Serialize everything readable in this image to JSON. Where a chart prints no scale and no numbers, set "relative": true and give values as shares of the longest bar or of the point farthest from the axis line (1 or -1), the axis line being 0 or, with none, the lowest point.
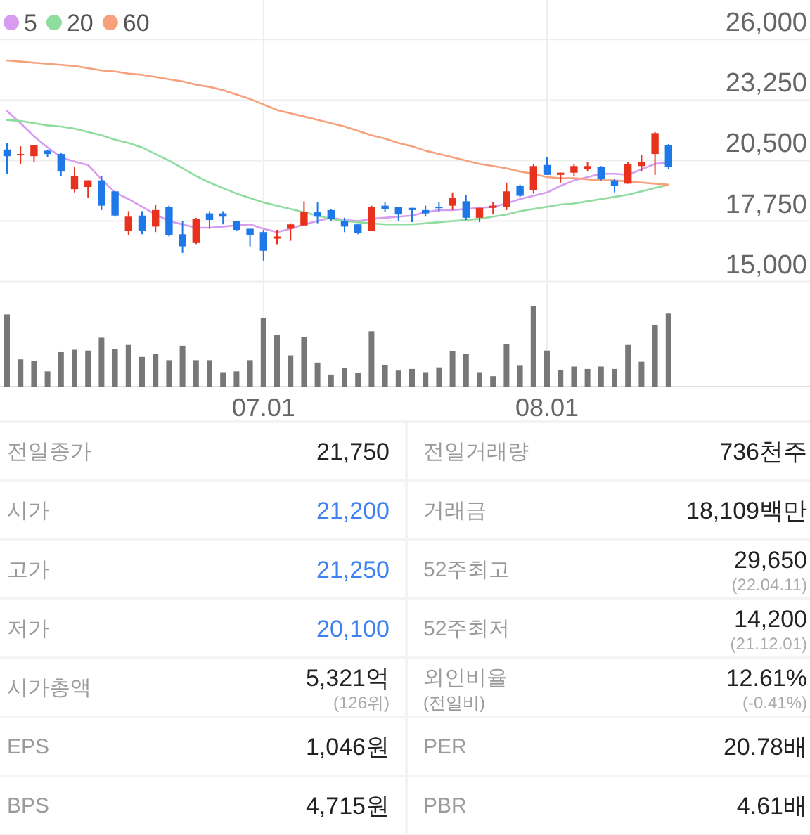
{
  "chart_data": [
    {
      "type": "candlestick",
      "categories": [
        null,
        null,
        null,
        null,
        null,
        null,
        null,
        null,
        null,
        null,
        null,
        null,
        null,
        null,
        null,
        null,
        null,
        null,
        null,
        "07.01",
        null,
        null,
        null,
        null,
        null,
        null,
        null,
        null,
        null,
        null,
        null,
        null,
        null,
        null,
        null,
        null,
        null,
        null,
        null,
        null,
        "08.01",
        null,
        null,
        null,
        null,
        null,
        null,
        null,
        null,
        null
      ],
      "ohlc": [
        [
          21000,
          21300,
          19900,
          20700
        ],
        [
          20750,
          21150,
          20350,
          20800
        ],
        [
          20700,
          21200,
          20450,
          21200
        ],
        [
          20950,
          21000,
          20650,
          20800
        ],
        [
          20800,
          20850,
          19800,
          20000
        ],
        [
          19200,
          20200,
          19050,
          19800
        ],
        [
          19300,
          19600,
          18800,
          19600
        ],
        [
          19600,
          19800,
          18250,
          18450
        ],
        [
          19100,
          19100,
          17950,
          18000
        ],
        [
          17300,
          18200,
          17100,
          17950
        ],
        [
          18000,
          18200,
          17150,
          17300
        ],
        [
          17500,
          18500,
          17250,
          18250
        ],
        [
          18400,
          18450,
          17050,
          17100
        ],
        [
          17150,
          17750,
          16300,
          16600
        ],
        [
          16750,
          17900,
          16700,
          17850
        ],
        [
          18100,
          18200,
          17400,
          17800
        ],
        [
          18100,
          18200,
          17600,
          17950
        ],
        [
          17750,
          17750,
          17300,
          17350
        ],
        [
          17400,
          17400,
          16600,
          17100
        ],
        [
          17250,
          17350,
          15950,
          16400
        ],
        [
          16950,
          17350,
          16700,
          17050
        ],
        [
          17400,
          17650,
          16850,
          17600
        ],
        [
          17550,
          18650,
          17550,
          18150
        ],
        [
          18150,
          18600,
          17650,
          17950
        ],
        [
          18250,
          18300,
          17750,
          17850
        ],
        [
          17750,
          17900,
          17250,
          17500
        ],
        [
          17600,
          17600,
          17150,
          17200
        ],
        [
          17300,
          18450,
          17300,
          18400
        ],
        [
          18450,
          18600,
          18150,
          18300
        ],
        [
          18400,
          18400,
          17750,
          18050
        ],
        [
          18350,
          18350,
          17700,
          18250
        ],
        [
          18250,
          18450,
          17950,
          18100
        ],
        [
          18400,
          18600,
          18150,
          18350
        ],
        [
          18450,
          19050,
          18250,
          18800
        ],
        [
          18650,
          18950,
          17800,
          17900
        ],
        [
          17900,
          18350,
          17700,
          18350
        ],
        [
          18350,
          18600,
          18050,
          18450
        ],
        [
          18400,
          19500,
          18250,
          19100
        ],
        [
          19350,
          19400,
          18850,
          18900
        ],
        [
          19150,
          20350,
          19000,
          20250
        ],
        [
          20300,
          20650,
          19850,
          19850
        ],
        [
          19850,
          19950,
          19500,
          19950
        ],
        [
          19950,
          20350,
          19800,
          20250
        ],
        [
          20100,
          20450,
          20000,
          20250
        ],
        [
          20200,
          20250,
          19600,
          19650
        ],
        [
          19600,
          19650,
          19050,
          19350
        ],
        [
          19450,
          20450,
          19450,
          20350
        ],
        [
          20250,
          20750,
          20000,
          20450
        ],
        [
          20800,
          21800,
          19850,
          21750
        ],
        [
          21200,
          21250,
          20100,
          20200
        ]
      ],
      "colors": [
        "#1e78e8",
        "#e8321e",
        "#e8321e",
        "#1e78e8",
        "#1e78e8",
        "#e8321e",
        "#e8321e",
        "#1e78e8",
        "#1e78e8",
        "#e8321e",
        "#1e78e8",
        "#e8321e",
        "#1e78e8",
        "#1e78e8",
        "#e8321e",
        "#1e78e8",
        "#1e78e8",
        "#1e78e8",
        "#1e78e8",
        "#1e78e8",
        "#e8321e",
        "#e8321e",
        "#e8321e",
        "#1e78e8",
        "#1e78e8",
        "#1e78e8",
        "#1e78e8",
        "#e8321e",
        "#1e78e8",
        "#1e78e8",
        "#1e78e8",
        "#1e78e8",
        "#1e78e8",
        "#e8321e",
        "#1e78e8",
        "#e8321e",
        "#e8321e",
        "#e8321e",
        "#1e78e8",
        "#e8321e",
        "#1e78e8",
        "#e8321e",
        "#e8321e",
        "#e8321e",
        "#1e78e8",
        "#1e78e8",
        "#e8321e",
        "#e8321e",
        "#e8321e",
        "#1e78e8"
      ],
      "series": [
        {
          "name": "5",
          "type": "line",
          "color": "#d79cf0",
          "values": [
            22750,
            22200,
            21600,
            21100,
            20650,
            20450,
            20300,
            19650,
            19050,
            18750,
            18400,
            18050,
            17750,
            17600,
            17450,
            17450,
            17500,
            17550,
            17600,
            17400,
            17250,
            17400,
            17600,
            17750,
            17900,
            17800,
            17750,
            17850,
            17900,
            17950,
            18000,
            18150,
            18250,
            18250,
            18300,
            18350,
            18400,
            18550,
            18750,
            18900,
            19050,
            19350,
            19600,
            19750,
            19900,
            19900,
            19850,
            20100,
            20350,
            20400
          ]
        },
        {
          "name": "20",
          "type": "line",
          "color": "#8fdc9f",
          "values": [
            22350,
            22300,
            22200,
            22100,
            22050,
            21950,
            21800,
            21650,
            21450,
            21300,
            21100,
            20800,
            20500,
            20150,
            19800,
            19500,
            19250,
            19000,
            18800,
            18600,
            18450,
            18300,
            18150,
            18000,
            17850,
            17750,
            17700,
            17650,
            17600,
            17600,
            17600,
            17650,
            17700,
            17750,
            17800,
            17850,
            17950,
            18050,
            18200,
            18300,
            18400,
            18500,
            18550,
            18650,
            18750,
            18850,
            18950,
            19100,
            19250,
            19400
          ]
        },
        {
          "name": "60",
          "type": "line",
          "color": "#f6a07c",
          "values": [
            25050,
            25000,
            24950,
            24900,
            24850,
            24800,
            24700,
            24600,
            24550,
            24450,
            24400,
            24300,
            24200,
            24100,
            23950,
            23850,
            23700,
            23500,
            23300,
            23050,
            22800,
            22650,
            22500,
            22350,
            22200,
            22050,
            21850,
            21650,
            21500,
            21300,
            21150,
            20950,
            20800,
            20650,
            20500,
            20350,
            20250,
            20150,
            20000,
            19900,
            19750,
            19700,
            19700,
            19650,
            19600,
            19600,
            19550,
            19500,
            19450,
            19400
          ]
        }
      ],
      "ylim": [
        14700,
        27800
      ],
      "yticks": [
        {
          "value": 15000,
          "label": "15,000"
        },
        {
          "value": 17750,
          "label": "17,750"
        },
        {
          "value": 20500,
          "label": "20,500"
        },
        {
          "value": 23250,
          "label": "23,250"
        },
        {
          "value": 26000,
          "label": "26,000"
        }
      ],
      "grid": true,
      "legend": "top left",
      "tick_labels": "y"
    },
    {
      "type": "bar",
      "relative": true,
      "color": "#777777",
      "grid": "x",
      "tick_labels": "x",
      "categories": [
        null,
        null,
        null,
        null,
        null,
        null,
        null,
        null,
        null,
        null,
        null,
        null,
        null,
        null,
        null,
        null,
        null,
        null,
        null,
        "07.01",
        null,
        null,
        null,
        null,
        null,
        null,
        null,
        null,
        null,
        null,
        null,
        null,
        null,
        null,
        null,
        null,
        null,
        null,
        null,
        null,
        "08.01",
        null,
        null,
        null,
        null,
        null,
        null,
        null,
        null,
        null
      ],
      "values": [
        0.9,
        0.34,
        0.32,
        0.19,
        0.43,
        0.46,
        0.45,
        0.61,
        0.47,
        0.52,
        0.37,
        0.41,
        0.33,
        0.51,
        0.33,
        0.33,
        0.18,
        0.19,
        0.33,
        0.86,
        0.64,
        0.39,
        0.62,
        0.3,
        0.15,
        0.23,
        0.17,
        0.69,
        0.27,
        0.2,
        0.22,
        0.18,
        0.24,
        0.44,
        0.41,
        0.18,
        0.13,
        0.53,
        0.26,
        1,
        0.45,
        0.21,
        0.25,
        0.22,
        0.25,
        0.22,
        0.52,
        0.31,
        0.77,
        0.91
      ]
    },
    {
      "type": "other",
      "annotations": [
        "전일종가",
        "21,750",
        "전일거래량",
        "736천주",
        "시가",
        "21,200",
        "거래금",
        "18,109백만",
        "고가",
        "21,250",
        "52주최고",
        "29,650",
        "(22.04.11)",
        "저가",
        "20,100",
        "52주최저",
        "14,200",
        "(21.12.01)",
        "시가총액",
        "5,321억",
        "(126위)",
        "외인비율",
        "(전일비)",
        "12.61%",
        "(-0.41%)",
        "EPS",
        "1,046원",
        "PER",
        "20.78배",
        "BPS",
        "4,715원",
        "PBR",
        "4.61배"
      ]
    }
  ]
}
